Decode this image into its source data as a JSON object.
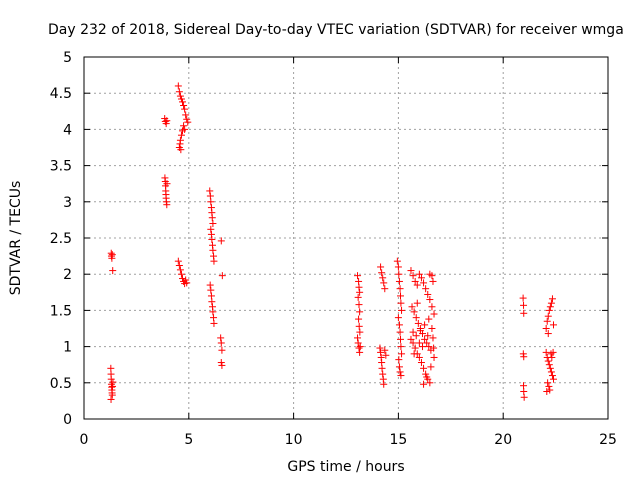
{
  "chart_data": {
    "type": "scatter",
    "title": "Day 232 of 2018, Sidereal Day-to-day VTEC variation (SDTVAR) for receiver wmga",
    "xlabel": "GPS time / hours",
    "ylabel": "SDTVAR / TECUs",
    "xlim": [
      0,
      25
    ],
    "ylim": [
      0,
      5
    ],
    "xticks": [
      0,
      5,
      10,
      15,
      20,
      25
    ],
    "xtick_labels": [
      "0",
      "5",
      "10",
      "15",
      "20",
      "25"
    ],
    "yticks": [
      0,
      0.5,
      1,
      1.5,
      2,
      2.5,
      3,
      3.5,
      4,
      4.5,
      5
    ],
    "ytick_labels": [
      "0",
      "0.5",
      "1",
      "1.5",
      "2",
      "2.5",
      "3",
      "3.5",
      "4",
      "4.5",
      "5"
    ],
    "grid": true,
    "marker": "+",
    "series": [
      {
        "name": "SDTVAR",
        "color": "#ff0000",
        "points": [
          [
            1.3,
            2.29
          ],
          [
            1.31,
            2.25
          ],
          [
            1.33,
            2.22
          ],
          [
            1.35,
            2.27
          ],
          [
            1.37,
            2.05
          ],
          [
            1.28,
            0.7
          ],
          [
            1.29,
            0.62
          ],
          [
            1.3,
            0.55
          ],
          [
            1.31,
            0.48
          ],
          [
            1.32,
            0.44
          ],
          [
            1.33,
            0.4
          ],
          [
            1.34,
            0.36
          ],
          [
            1.35,
            0.33
          ],
          [
            1.29,
            0.27
          ],
          [
            1.36,
            0.45
          ],
          [
            1.38,
            0.51
          ],
          [
            3.85,
            4.15
          ],
          [
            3.88,
            4.11
          ],
          [
            3.92,
            4.08
          ],
          [
            3.95,
            4.12
          ],
          [
            3.86,
            3.33
          ],
          [
            3.88,
            3.28
          ],
          [
            3.89,
            3.22
          ],
          [
            3.9,
            3.15
          ],
          [
            3.91,
            3.1
          ],
          [
            3.92,
            3.05
          ],
          [
            3.93,
            3.0
          ],
          [
            3.95,
            2.96
          ],
          [
            3.96,
            3.25
          ],
          [
            4.5,
            4.6
          ],
          [
            4.55,
            4.52
          ],
          [
            4.6,
            4.46
          ],
          [
            4.65,
            4.42
          ],
          [
            4.7,
            4.38
          ],
          [
            4.75,
            4.33
          ],
          [
            4.8,
            4.28
          ],
          [
            4.85,
            4.2
          ],
          [
            4.9,
            4.14
          ],
          [
            4.95,
            4.1
          ],
          [
            4.6,
            3.85
          ],
          [
            4.65,
            3.92
          ],
          [
            4.7,
            3.98
          ],
          [
            4.75,
            4.05
          ],
          [
            4.8,
            4.0
          ],
          [
            4.55,
            3.75
          ],
          [
            4.58,
            3.8
          ],
          [
            4.62,
            3.72
          ],
          [
            4.5,
            2.18
          ],
          [
            4.55,
            2.12
          ],
          [
            4.6,
            2.06
          ],
          [
            4.65,
            2.0
          ],
          [
            4.7,
            1.94
          ],
          [
            4.75,
            1.9
          ],
          [
            4.8,
            1.87
          ],
          [
            4.85,
            1.92
          ],
          [
            4.9,
            1.88
          ],
          [
            6.0,
            3.15
          ],
          [
            6.03,
            3.08
          ],
          [
            6.05,
            3.0
          ],
          [
            6.08,
            2.92
          ],
          [
            6.1,
            2.85
          ],
          [
            6.12,
            2.78
          ],
          [
            6.15,
            2.7
          ],
          [
            6.05,
            2.62
          ],
          [
            6.08,
            2.55
          ],
          [
            6.1,
            2.48
          ],
          [
            6.13,
            2.4
          ],
          [
            6.15,
            2.33
          ],
          [
            6.18,
            2.25
          ],
          [
            6.2,
            2.18
          ],
          [
            6.02,
            1.85
          ],
          [
            6.05,
            1.78
          ],
          [
            6.08,
            1.7
          ],
          [
            6.1,
            1.62
          ],
          [
            6.13,
            1.55
          ],
          [
            6.15,
            1.48
          ],
          [
            6.18,
            1.4
          ],
          [
            6.2,
            1.32
          ],
          [
            6.55,
            2.46
          ],
          [
            6.6,
            1.98
          ],
          [
            6.52,
            1.12
          ],
          [
            6.55,
            1.05
          ],
          [
            6.58,
            0.95
          ],
          [
            6.55,
            0.78
          ],
          [
            6.58,
            0.74
          ],
          [
            13.05,
            1.98
          ],
          [
            13.1,
            1.9
          ],
          [
            13.12,
            1.82
          ],
          [
            13.15,
            1.75
          ],
          [
            13.08,
            1.68
          ],
          [
            13.12,
            1.58
          ],
          [
            13.15,
            1.48
          ],
          [
            13.1,
            1.38
          ],
          [
            13.13,
            1.28
          ],
          [
            13.16,
            1.2
          ],
          [
            13.05,
            1.12
          ],
          [
            13.08,
            1.05
          ],
          [
            13.12,
            0.98
          ],
          [
            13.15,
            0.92
          ],
          [
            13.18,
            1.0
          ],
          [
            14.15,
            2.1
          ],
          [
            14.2,
            2.02
          ],
          [
            14.25,
            1.95
          ],
          [
            14.3,
            1.88
          ],
          [
            14.35,
            1.8
          ],
          [
            14.12,
            0.98
          ],
          [
            14.15,
            0.92
          ],
          [
            14.18,
            0.85
          ],
          [
            14.2,
            0.78
          ],
          [
            14.22,
            0.7
          ],
          [
            14.25,
            0.62
          ],
          [
            14.28,
            0.55
          ],
          [
            14.3,
            0.48
          ],
          [
            14.35,
            0.95
          ],
          [
            14.4,
            0.88
          ],
          [
            14.95,
            2.18
          ],
          [
            15.0,
            2.1
          ],
          [
            15.02,
            2.0
          ],
          [
            15.05,
            1.9
          ],
          [
            15.08,
            1.8
          ],
          [
            15.1,
            1.7
          ],
          [
            15.12,
            1.6
          ],
          [
            15.15,
            1.5
          ],
          [
            15.0,
            1.4
          ],
          [
            15.05,
            1.3
          ],
          [
            15.08,
            1.2
          ],
          [
            15.1,
            1.1
          ],
          [
            15.12,
            1.0
          ],
          [
            15.15,
            0.9
          ],
          [
            15.02,
            0.82
          ],
          [
            15.05,
            0.72
          ],
          [
            15.08,
            0.65
          ],
          [
            15.12,
            0.6
          ],
          [
            15.6,
            2.05
          ],
          [
            15.7,
            1.98
          ],
          [
            15.8,
            1.9
          ],
          [
            15.9,
            1.85
          ],
          [
            16.0,
            2.0
          ],
          [
            16.1,
            1.95
          ],
          [
            16.2,
            1.88
          ],
          [
            16.3,
            1.8
          ],
          [
            16.4,
            1.72
          ],
          [
            16.5,
            1.65
          ],
          [
            16.6,
            1.55
          ],
          [
            16.7,
            1.45
          ],
          [
            15.65,
            1.55
          ],
          [
            15.75,
            1.48
          ],
          [
            15.85,
            1.4
          ],
          [
            15.95,
            1.32
          ],
          [
            16.05,
            1.25
          ],
          [
            16.15,
            1.18
          ],
          [
            16.25,
            1.1
          ],
          [
            16.35,
            1.05
          ],
          [
            16.45,
            1.0
          ],
          [
            16.55,
            0.95
          ],
          [
            15.6,
            1.1
          ],
          [
            15.7,
            1.05
          ],
          [
            15.8,
            0.98
          ],
          [
            15.9,
            0.9
          ],
          [
            16.0,
            0.85
          ],
          [
            16.1,
            0.78
          ],
          [
            16.2,
            0.7
          ],
          [
            16.3,
            0.62
          ],
          [
            16.4,
            0.55
          ],
          [
            16.5,
            0.5
          ],
          [
            15.7,
            1.2
          ],
          [
            15.85,
            1.15
          ],
          [
            16.05,
            1.22
          ],
          [
            16.25,
            1.3
          ],
          [
            16.45,
            1.38
          ],
          [
            16.6,
            1.25
          ],
          [
            16.65,
            1.12
          ],
          [
            16.68,
            0.98
          ],
          [
            16.7,
            0.85
          ],
          [
            16.55,
            0.72
          ],
          [
            16.35,
            0.58
          ],
          [
            16.2,
            0.48
          ],
          [
            16.0,
            1.05
          ],
          [
            15.9,
            1.6
          ],
          [
            16.5,
            2.0
          ],
          [
            16.6,
            1.98
          ],
          [
            16.65,
            1.9
          ],
          [
            16.4,
            1.15
          ],
          [
            16.15,
            1.0
          ],
          [
            15.75,
            0.9
          ],
          [
            20.95,
            1.67
          ],
          [
            20.97,
            1.57
          ],
          [
            20.98,
            1.46
          ],
          [
            20.96,
            0.9
          ],
          [
            20.98,
            0.86
          ],
          [
            20.97,
            0.46
          ],
          [
            20.98,
            0.38
          ],
          [
            21.0,
            0.3
          ],
          [
            22.05,
            1.25
          ],
          [
            22.1,
            1.35
          ],
          [
            22.15,
            1.42
          ],
          [
            22.2,
            1.5
          ],
          [
            22.25,
            1.55
          ],
          [
            22.3,
            1.6
          ],
          [
            22.35,
            1.66
          ],
          [
            22.4,
            1.3
          ],
          [
            22.15,
            1.18
          ],
          [
            22.05,
            0.92
          ],
          [
            22.1,
            0.85
          ],
          [
            22.15,
            0.8
          ],
          [
            22.2,
            0.75
          ],
          [
            22.25,
            0.7
          ],
          [
            22.3,
            0.65
          ],
          [
            22.35,
            0.6
          ],
          [
            22.4,
            0.55
          ],
          [
            22.12,
            0.5
          ],
          [
            22.18,
            0.45
          ],
          [
            22.22,
            0.4
          ],
          [
            22.28,
            0.9
          ],
          [
            22.32,
            0.85
          ],
          [
            22.38,
            0.92
          ],
          [
            22.08,
            0.38
          ]
        ]
      }
    ]
  }
}
